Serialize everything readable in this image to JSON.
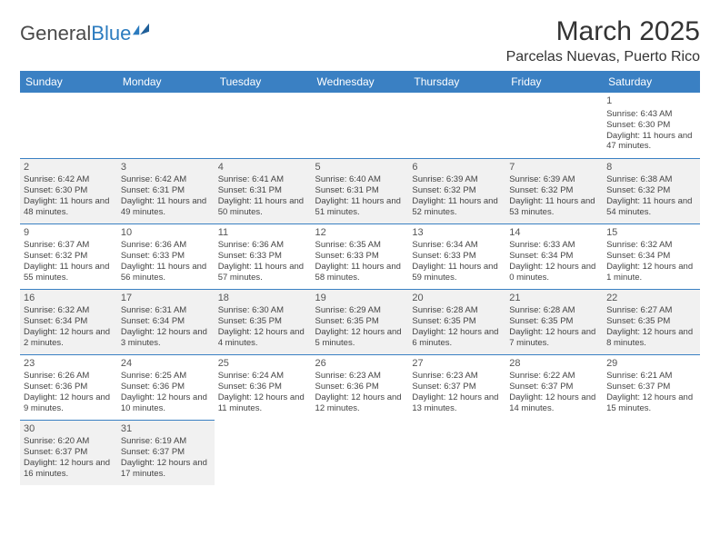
{
  "logo": {
    "general": "General",
    "blue": "Blue"
  },
  "title": "March 2025",
  "location": "Parcelas Nuevas, Puerto Rico",
  "colors": {
    "header_bg": "#3a80c3",
    "header_text": "#ffffff",
    "shaded_bg": "#f1f1f1",
    "border": "#3a80c3",
    "logo_gray": "#4a4a4a",
    "logo_blue": "#2b7bbf"
  },
  "weekdays": [
    "Sunday",
    "Monday",
    "Tuesday",
    "Wednesday",
    "Thursday",
    "Friday",
    "Saturday"
  ],
  "weeks": [
    [
      null,
      null,
      null,
      null,
      null,
      null,
      {
        "d": "1",
        "sr": "Sunrise: 6:43 AM",
        "ss": "Sunset: 6:30 PM",
        "dl": "Daylight: 11 hours and 47 minutes."
      }
    ],
    [
      {
        "d": "2",
        "sr": "Sunrise: 6:42 AM",
        "ss": "Sunset: 6:30 PM",
        "dl": "Daylight: 11 hours and 48 minutes."
      },
      {
        "d": "3",
        "sr": "Sunrise: 6:42 AM",
        "ss": "Sunset: 6:31 PM",
        "dl": "Daylight: 11 hours and 49 minutes."
      },
      {
        "d": "4",
        "sr": "Sunrise: 6:41 AM",
        "ss": "Sunset: 6:31 PM",
        "dl": "Daylight: 11 hours and 50 minutes."
      },
      {
        "d": "5",
        "sr": "Sunrise: 6:40 AM",
        "ss": "Sunset: 6:31 PM",
        "dl": "Daylight: 11 hours and 51 minutes."
      },
      {
        "d": "6",
        "sr": "Sunrise: 6:39 AM",
        "ss": "Sunset: 6:32 PM",
        "dl": "Daylight: 11 hours and 52 minutes."
      },
      {
        "d": "7",
        "sr": "Sunrise: 6:39 AM",
        "ss": "Sunset: 6:32 PM",
        "dl": "Daylight: 11 hours and 53 minutes."
      },
      {
        "d": "8",
        "sr": "Sunrise: 6:38 AM",
        "ss": "Sunset: 6:32 PM",
        "dl": "Daylight: 11 hours and 54 minutes."
      }
    ],
    [
      {
        "d": "9",
        "sr": "Sunrise: 6:37 AM",
        "ss": "Sunset: 6:32 PM",
        "dl": "Daylight: 11 hours and 55 minutes."
      },
      {
        "d": "10",
        "sr": "Sunrise: 6:36 AM",
        "ss": "Sunset: 6:33 PM",
        "dl": "Daylight: 11 hours and 56 minutes."
      },
      {
        "d": "11",
        "sr": "Sunrise: 6:36 AM",
        "ss": "Sunset: 6:33 PM",
        "dl": "Daylight: 11 hours and 57 minutes."
      },
      {
        "d": "12",
        "sr": "Sunrise: 6:35 AM",
        "ss": "Sunset: 6:33 PM",
        "dl": "Daylight: 11 hours and 58 minutes."
      },
      {
        "d": "13",
        "sr": "Sunrise: 6:34 AM",
        "ss": "Sunset: 6:33 PM",
        "dl": "Daylight: 11 hours and 59 minutes."
      },
      {
        "d": "14",
        "sr": "Sunrise: 6:33 AM",
        "ss": "Sunset: 6:34 PM",
        "dl": "Daylight: 12 hours and 0 minutes."
      },
      {
        "d": "15",
        "sr": "Sunrise: 6:32 AM",
        "ss": "Sunset: 6:34 PM",
        "dl": "Daylight: 12 hours and 1 minute."
      }
    ],
    [
      {
        "d": "16",
        "sr": "Sunrise: 6:32 AM",
        "ss": "Sunset: 6:34 PM",
        "dl": "Daylight: 12 hours and 2 minutes."
      },
      {
        "d": "17",
        "sr": "Sunrise: 6:31 AM",
        "ss": "Sunset: 6:34 PM",
        "dl": "Daylight: 12 hours and 3 minutes."
      },
      {
        "d": "18",
        "sr": "Sunrise: 6:30 AM",
        "ss": "Sunset: 6:35 PM",
        "dl": "Daylight: 12 hours and 4 minutes."
      },
      {
        "d": "19",
        "sr": "Sunrise: 6:29 AM",
        "ss": "Sunset: 6:35 PM",
        "dl": "Daylight: 12 hours and 5 minutes."
      },
      {
        "d": "20",
        "sr": "Sunrise: 6:28 AM",
        "ss": "Sunset: 6:35 PM",
        "dl": "Daylight: 12 hours and 6 minutes."
      },
      {
        "d": "21",
        "sr": "Sunrise: 6:28 AM",
        "ss": "Sunset: 6:35 PM",
        "dl": "Daylight: 12 hours and 7 minutes."
      },
      {
        "d": "22",
        "sr": "Sunrise: 6:27 AM",
        "ss": "Sunset: 6:35 PM",
        "dl": "Daylight: 12 hours and 8 minutes."
      }
    ],
    [
      {
        "d": "23",
        "sr": "Sunrise: 6:26 AM",
        "ss": "Sunset: 6:36 PM",
        "dl": "Daylight: 12 hours and 9 minutes."
      },
      {
        "d": "24",
        "sr": "Sunrise: 6:25 AM",
        "ss": "Sunset: 6:36 PM",
        "dl": "Daylight: 12 hours and 10 minutes."
      },
      {
        "d": "25",
        "sr": "Sunrise: 6:24 AM",
        "ss": "Sunset: 6:36 PM",
        "dl": "Daylight: 12 hours and 11 minutes."
      },
      {
        "d": "26",
        "sr": "Sunrise: 6:23 AM",
        "ss": "Sunset: 6:36 PM",
        "dl": "Daylight: 12 hours and 12 minutes."
      },
      {
        "d": "27",
        "sr": "Sunrise: 6:23 AM",
        "ss": "Sunset: 6:37 PM",
        "dl": "Daylight: 12 hours and 13 minutes."
      },
      {
        "d": "28",
        "sr": "Sunrise: 6:22 AM",
        "ss": "Sunset: 6:37 PM",
        "dl": "Daylight: 12 hours and 14 minutes."
      },
      {
        "d": "29",
        "sr": "Sunrise: 6:21 AM",
        "ss": "Sunset: 6:37 PM",
        "dl": "Daylight: 12 hours and 15 minutes."
      }
    ],
    [
      {
        "d": "30",
        "sr": "Sunrise: 6:20 AM",
        "ss": "Sunset: 6:37 PM",
        "dl": "Daylight: 12 hours and 16 minutes."
      },
      {
        "d": "31",
        "sr": "Sunrise: 6:19 AM",
        "ss": "Sunset: 6:37 PM",
        "dl": "Daylight: 12 hours and 17 minutes."
      },
      null,
      null,
      null,
      null,
      null
    ]
  ]
}
